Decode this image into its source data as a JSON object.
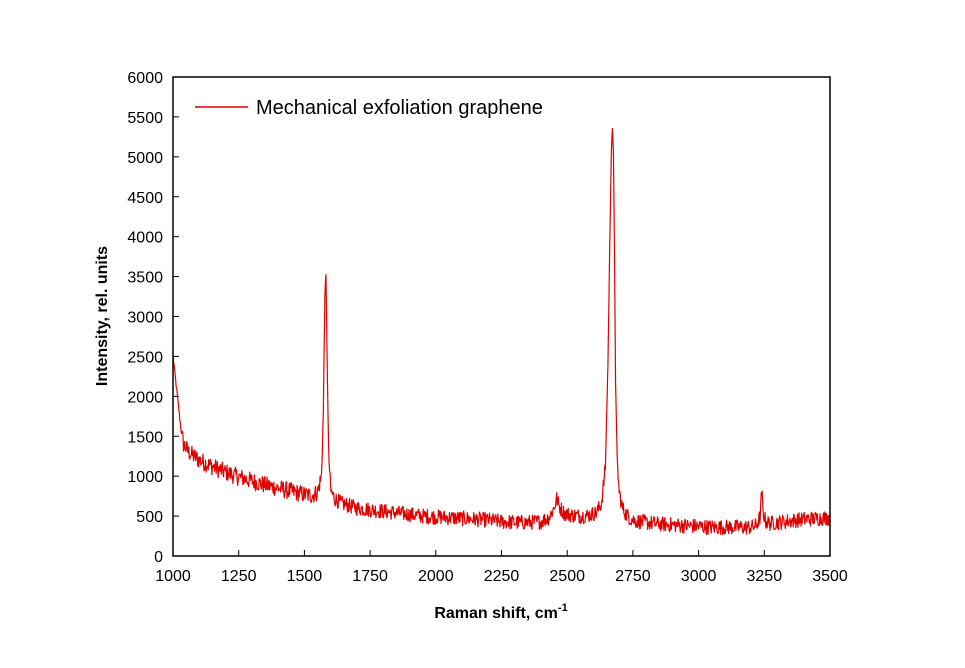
{
  "chart_data": {
    "type": "line",
    "xlabel": "Raman shift, cm",
    "xlabel_sup": "-1",
    "ylabel": "Intensity, rel. units",
    "xlim": [
      1000,
      3500
    ],
    "ylim": [
      0,
      6000
    ],
    "x_ticks": [
      1000,
      1250,
      1500,
      1750,
      2000,
      2250,
      2500,
      2750,
      3000,
      3250,
      3500
    ],
    "y_ticks": [
      0,
      500,
      1000,
      1500,
      2000,
      2500,
      3000,
      3500,
      4000,
      4500,
      5000,
      5500,
      6000
    ],
    "grid": false,
    "legend_position": "top-left",
    "series": [
      {
        "name": "Mechanical exfoliation graphene",
        "color": "#e00000",
        "x": [
          1000,
          1010,
          1020,
          1030,
          1040,
          1060,
          1100,
          1150,
          1200,
          1250,
          1300,
          1350,
          1400,
          1450,
          1500,
          1530,
          1550,
          1565,
          1572,
          1578,
          1582,
          1586,
          1592,
          1600,
          1615,
          1640,
          1700,
          1750,
          1800,
          1850,
          1900,
          1950,
          2000,
          2050,
          2100,
          2150,
          2200,
          2250,
          2300,
          2350,
          2400,
          2430,
          2450,
          2460,
          2470,
          2490,
          2520,
          2550,
          2580,
          2610,
          2630,
          2645,
          2655,
          2662,
          2668,
          2672,
          2676,
          2680,
          2684,
          2690,
          2698,
          2710,
          2725,
          2740,
          2760,
          2800,
          2850,
          2900,
          2950,
          3000,
          3050,
          3100,
          3150,
          3200,
          3220,
          3235,
          3240,
          3245,
          3255,
          3270,
          3300,
          3350,
          3400,
          3450,
          3500
        ],
        "y": [
          2500,
          2200,
          1900,
          1600,
          1400,
          1300,
          1200,
          1120,
          1050,
          990,
          940,
          890,
          850,
          810,
          770,
          760,
          800,
          1000,
          1800,
          3300,
          3500,
          2600,
          1300,
          820,
          720,
          660,
          600,
          580,
          560,
          540,
          520,
          500,
          490,
          480,
          470,
          460,
          450,
          430,
          420,
          420,
          430,
          480,
          600,
          720,
          620,
          530,
          510,
          500,
          510,
          540,
          650,
          1100,
          2400,
          3900,
          5100,
          5370,
          5000,
          3800,
          2200,
          1200,
          800,
          600,
          520,
          470,
          440,
          420,
          400,
          390,
          380,
          370,
          360,
          360,
          360,
          360,
          380,
          500,
          820,
          560,
          430,
          410,
          420,
          440,
          460,
          470,
          480
        ]
      }
    ]
  }
}
